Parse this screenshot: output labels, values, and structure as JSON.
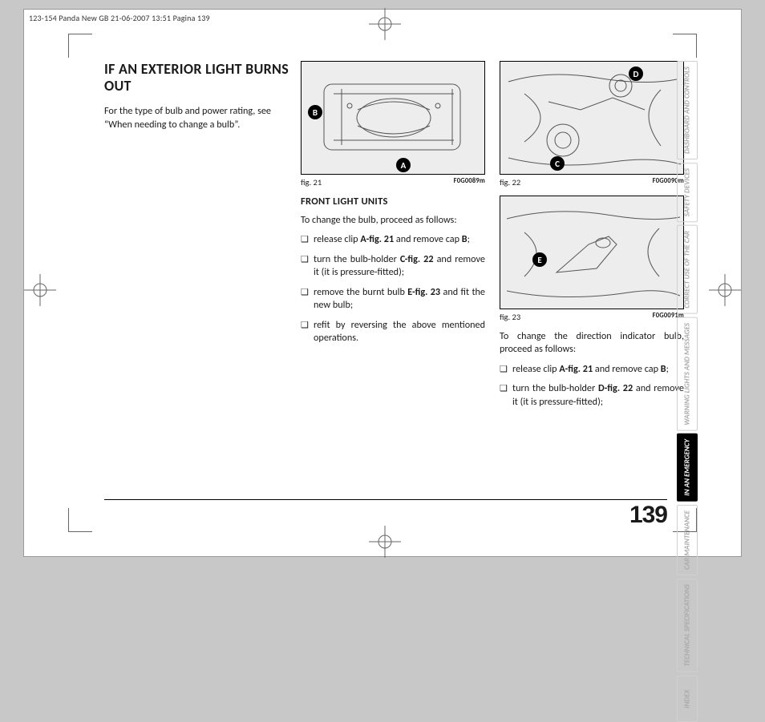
{
  "printer_header": "123-154 Panda New GB  21-06-2007  13:51  Pagina 139",
  "heading": "IF AN EXTERIOR LIGHT BURNS OUT",
  "intro": "For the type of bulb and power rating, see “When needing to change a bulb”.",
  "figures": {
    "f21": {
      "caption": "fig. 21",
      "code": "F0G0089m",
      "callouts": [
        "A",
        "B"
      ]
    },
    "f22": {
      "caption": "fig. 22",
      "code": "F0G0090m",
      "callouts": [
        "C",
        "D"
      ]
    },
    "f23": {
      "caption": "fig. 23",
      "code": "F0G0091m",
      "callouts": [
        "E"
      ]
    }
  },
  "mid_section": {
    "subhead": "FRONT LIGHT UNITS",
    "lead": "To change the bulb, proceed as follows:",
    "items": [
      {
        "pre": "release clip ",
        "b1": "A-fig. 21",
        "mid": " and remove cap ",
        "b2": "B",
        "post": ";"
      },
      {
        "pre": "turn the bulb-holder ",
        "b1": "C-fig. 22",
        "mid": " and re­move it (it is pressure-fitted);",
        "b2": "",
        "post": ""
      },
      {
        "pre": "remove the burnt bulb ",
        "b1": "E-fig. 23",
        "mid": " and fit the new bulb;",
        "b2": "",
        "post": ""
      },
      {
        "pre": "refit by reversing the above mentioned operations.",
        "b1": "",
        "mid": "",
        "b2": "",
        "post": ""
      }
    ]
  },
  "right_section": {
    "lead": "To change the direction indicator bulb, proceed as follows:",
    "items": [
      {
        "pre": "release clip ",
        "b1": "A-fig. 21",
        "mid": " and remove cap ",
        "b2": "B",
        "post": ";"
      },
      {
        "pre": "turn the bulb-holder ",
        "b1": "D-fig. 22",
        "mid": " and re­move it (it is pressure-fitted);",
        "b2": "",
        "post": ""
      }
    ]
  },
  "side_tabs": [
    {
      "label": "DASHBOARD AND CONTROLS",
      "active": false
    },
    {
      "label": "SAFETY DEVICES",
      "active": false
    },
    {
      "label": "CORRECT USE OF THE CAR",
      "active": false
    },
    {
      "label": "WARNING LIGHTS AND MESSAGES",
      "active": false
    },
    {
      "label": "IN AN EMERGENCY",
      "active": true
    },
    {
      "label": "CAR MAINTENANCE",
      "active": false
    },
    {
      "label": "TECHNICAL SPECIFICATIONS",
      "active": false
    },
    {
      "label": "INDEX",
      "active": false
    }
  ],
  "page_number": "139",
  "bullet_glyph": "❑"
}
